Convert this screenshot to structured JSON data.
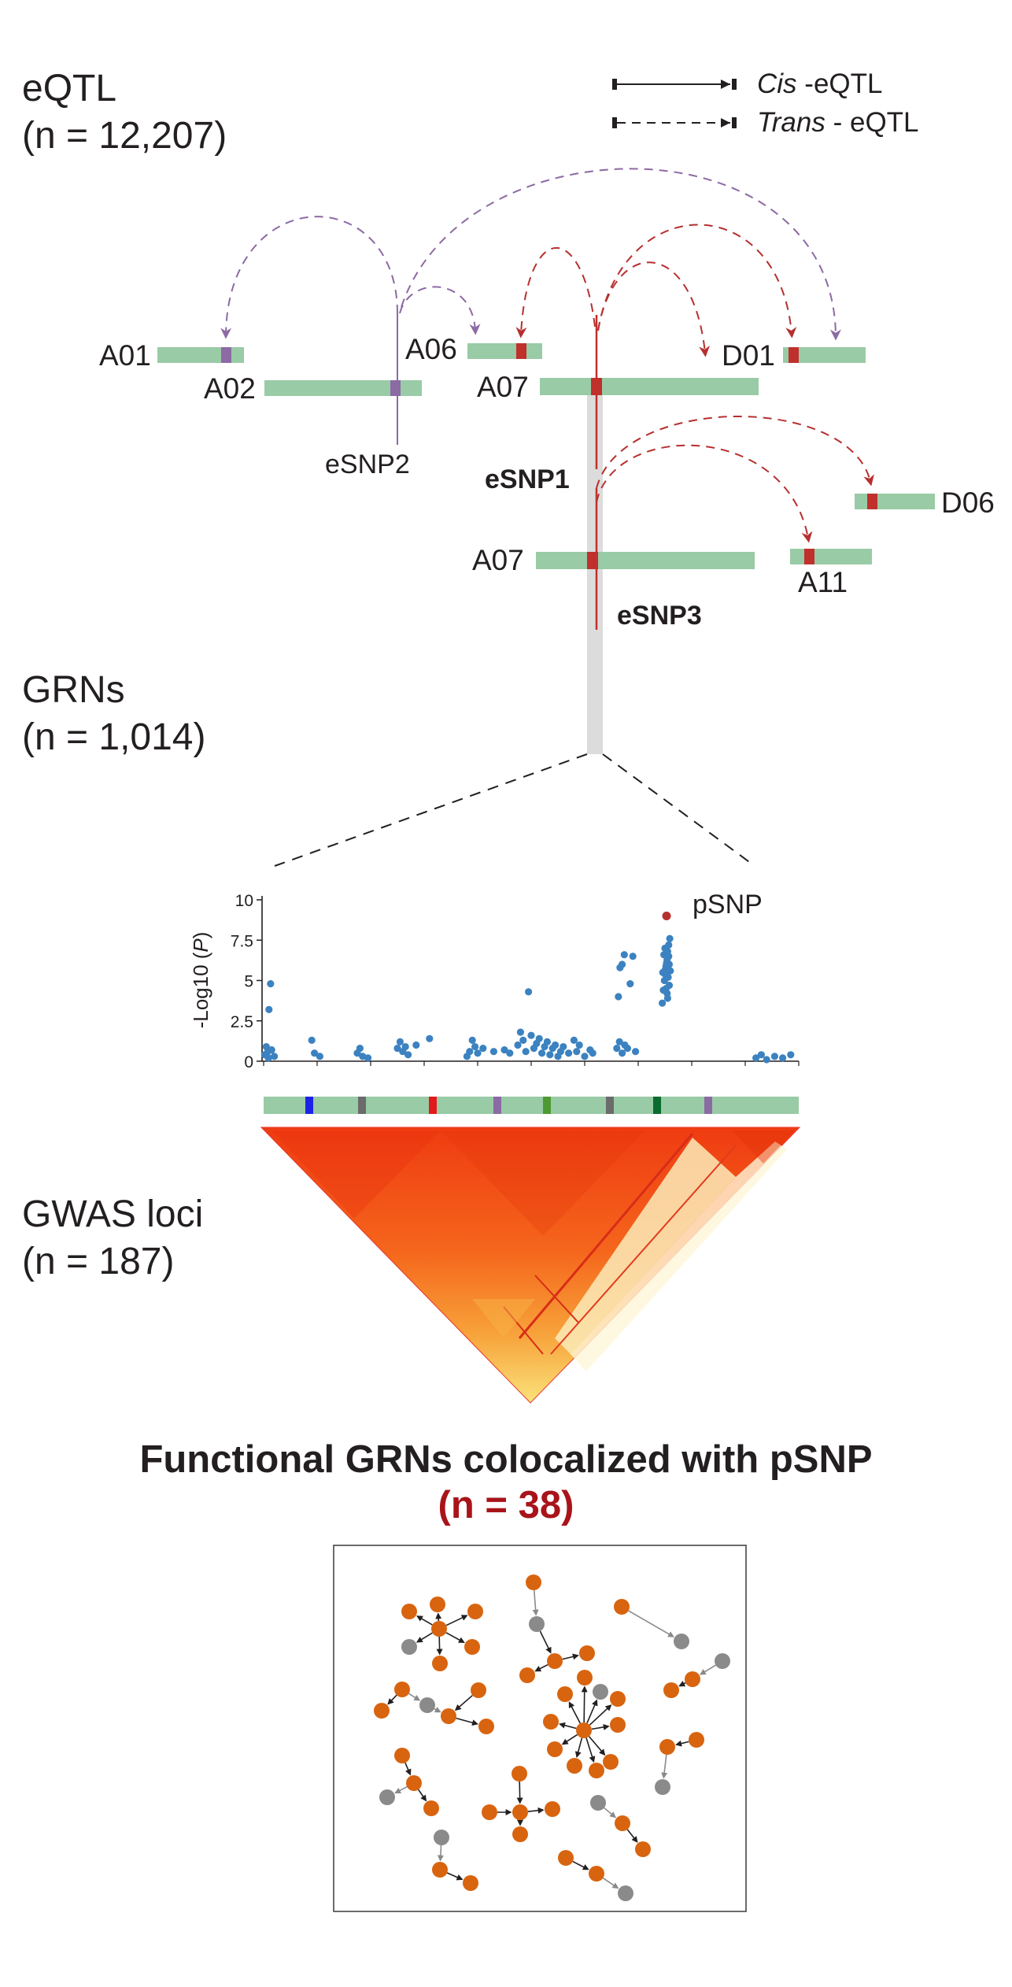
{
  "sections": {
    "eqtl": {
      "label": "eQTL",
      "count": "(n = 12,207)"
    },
    "grns": {
      "label": "GRNs",
      "count": "(n = 1,014)"
    },
    "gwas": {
      "label": "GWAS loci",
      "count": "(n = 187)"
    }
  },
  "legend": {
    "cis_italic": "Cis",
    "cis_rest": " -eQTL",
    "trans_italic": "Trans",
    "trans_rest": " - eQTL"
  },
  "chromosomes": {
    "a01": "A01",
    "a02": "A02",
    "a06": "A06",
    "a07_top": "A07",
    "d01": "D01",
    "a07_bottom": "A07",
    "d06": "D06",
    "a11": "A11"
  },
  "snps": {
    "esnp1": "eSNP1",
    "esnp2": "eSNP2",
    "esnp3": "eSNP3"
  },
  "manhattan": {
    "ylabel_pre": "-Log10 (",
    "ylabel_italic": "P",
    "ylabel_post": ")",
    "peak_label": "pSNP"
  },
  "conclusion": {
    "title": "Functional GRNs colocalized with pSNP",
    "count": "(n = 38)"
  },
  "colors": {
    "chromosome_green": "#99cba6",
    "cis_trans_red": "#b5302f",
    "esnp2_purple": "#8c6aa4",
    "signal_blue": "#3c82c0",
    "network_orange": "#d8640f",
    "network_gray": "#8a8a8a",
    "count_red": "#a8141a"
  },
  "chart_data": {
    "type": "scatter",
    "title": "",
    "xlabel": "",
    "ylabel": "-Log10 (P)",
    "ylim": [
      0,
      10
    ],
    "yticks": [
      "0",
      "2.5",
      "5",
      "7.5",
      "10"
    ],
    "series": [
      {
        "name": "",
        "color": "#3c82c0",
        "points": [
          [
            0.2,
            0.4
          ],
          [
            0.5,
            0.9
          ],
          [
            0.8,
            0.6
          ],
          [
            0.9,
            0.2
          ],
          [
            1.0,
            3.2
          ],
          [
            1.3,
            4.8
          ],
          [
            1.5,
            0.7
          ],
          [
            2.0,
            0.3
          ],
          [
            9.0,
            1.3
          ],
          [
            9.5,
            0.5
          ],
          [
            10.5,
            0.3
          ],
          [
            17.5,
            0.5
          ],
          [
            18.0,
            0.8
          ],
          [
            18.5,
            0.3
          ],
          [
            19.5,
            0.2
          ],
          [
            25.0,
            0.8
          ],
          [
            25.5,
            1.2
          ],
          [
            26.0,
            0.6
          ],
          [
            26.5,
            0.9
          ],
          [
            27.0,
            0.4
          ],
          [
            28.5,
            1.0
          ],
          [
            31.0,
            1.4
          ],
          [
            38.0,
            0.3
          ],
          [
            38.5,
            0.6
          ],
          [
            39.0,
            1.3
          ],
          [
            39.5,
            0.9
          ],
          [
            40.0,
            0.5
          ],
          [
            41.0,
            0.8
          ],
          [
            43.0,
            0.6
          ],
          [
            45.0,
            0.7
          ],
          [
            46.0,
            0.5
          ],
          [
            47.5,
            1.0
          ],
          [
            48.0,
            1.8
          ],
          [
            48.5,
            1.3
          ],
          [
            49.0,
            0.6
          ],
          [
            49.5,
            4.3
          ],
          [
            50.0,
            1.6
          ],
          [
            50.5,
            0.8
          ],
          [
            51.0,
            1.1
          ],
          [
            51.5,
            1.4
          ],
          [
            52.0,
            0.5
          ],
          [
            52.5,
            0.9
          ],
          [
            53.0,
            1.2
          ],
          [
            53.5,
            0.4
          ],
          [
            54.0,
            0.8
          ],
          [
            54.5,
            1.0
          ],
          [
            55.0,
            0.3
          ],
          [
            55.5,
            0.6
          ],
          [
            56.0,
            0.9
          ],
          [
            57.0,
            0.5
          ],
          [
            58.0,
            1.3
          ],
          [
            58.5,
            0.6
          ],
          [
            59.0,
            1.0
          ],
          [
            60.0,
            0.3
          ],
          [
            61.0,
            0.7
          ],
          [
            61.5,
            0.5
          ],
          [
            66.0,
            0.8
          ],
          [
            66.5,
            1.2
          ],
          [
            67.0,
            0.5
          ],
          [
            67.5,
            1.0
          ],
          [
            68.0,
            0.8
          ],
          [
            66.3,
            4.0
          ],
          [
            66.6,
            5.8
          ],
          [
            67.0,
            6.0
          ],
          [
            67.4,
            6.6
          ],
          [
            68.5,
            4.8
          ],
          [
            69.0,
            6.5
          ],
          [
            69.5,
            0.6
          ],
          [
            74.5,
            3.6
          ],
          [
            74.7,
            4.4
          ],
          [
            74.9,
            5.0
          ],
          [
            75.0,
            5.4
          ],
          [
            75.2,
            5.9
          ],
          [
            75.4,
            6.3
          ],
          [
            75.5,
            6.8
          ],
          [
            75.7,
            7.2
          ],
          [
            75.9,
            7.6
          ],
          [
            75.1,
            5.7
          ],
          [
            75.3,
            6.1
          ],
          [
            75.6,
            5.2
          ],
          [
            75.8,
            4.7
          ],
          [
            74.8,
            6.6
          ],
          [
            75.0,
            7.0
          ],
          [
            75.4,
            4.2
          ],
          [
            74.6,
            5.5
          ],
          [
            75.8,
            6.0
          ],
          [
            76.0,
            5.6
          ],
          [
            75.2,
            4.5
          ],
          [
            75.5,
            3.9
          ],
          [
            75.7,
            6.5
          ],
          [
            92.0,
            0.2
          ],
          [
            93.0,
            0.4
          ],
          [
            94.0,
            0.1
          ],
          [
            95.5,
            0.3
          ],
          [
            97.0,
            0.2
          ],
          [
            98.5,
            0.4
          ]
        ]
      },
      {
        "name": "",
        "color": "#b5302f",
        "points": [
          [
            75.3,
            9.0
          ]
        ]
      }
    ],
    "legend": "none",
    "grid": false
  }
}
